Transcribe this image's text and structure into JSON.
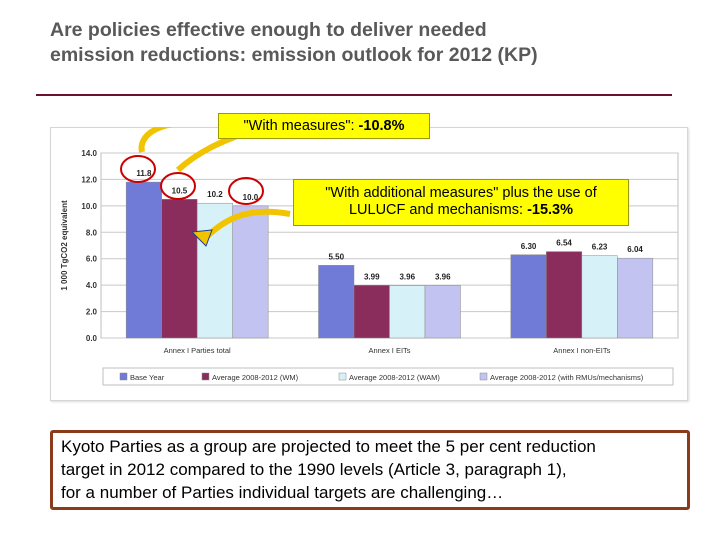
{
  "title": {
    "line1": "Are policies effective enough to deliver needed",
    "line2": "emission reductions: emission outlook for 2012 (KP)"
  },
  "callouts": {
    "wm_prefix": "\"With measures\": ",
    "wm_value": "-10.8%",
    "wam_line1": "\"With additional measures\" plus the use of",
    "wam_line2_prefix": "LULUCF and mechanisms: ",
    "wam_value": "-15.3%"
  },
  "summary": {
    "line1": "Kyoto Parties as a group are projected to meet the 5 per cent reduction",
    "line2": "target in 2012 compared to the 1990 levels (Article 3, paragraph 1),",
    "line3": "for a number of Parties individual targets are challenging…"
  },
  "colors": {
    "title": "#595959",
    "rule": "#6b1030",
    "callout_fill": "#ffff00",
    "circle_stroke": "#cc0000",
    "arrow_fill": "#f2c400",
    "arrow_stroke": "#1f3f8f",
    "summary_border": "#8b3a1a"
  },
  "chart_data": {
    "type": "bar",
    "ylabel": "1 000 TgCO2 equivalent",
    "ylim": [
      0,
      14
    ],
    "yticks": [
      "0.0",
      "2.0",
      "4.0",
      "6.0",
      "8.0",
      "10.0",
      "12.0",
      "14.0"
    ],
    "grid": true,
    "legend_position": "bottom",
    "categories": [
      "Annex I Parties total",
      "Annex I EITs",
      "Annex I non-EITs"
    ],
    "series": [
      {
        "name": "Base Year",
        "color": "#6f7bd6",
        "values": [
          11.8,
          5.5,
          6.3
        ],
        "labels": [
          "11.8",
          "5.50",
          "6.30"
        ]
      },
      {
        "name": "Average 2008-2012 (WM)",
        "color": "#8b2d5c",
        "values": [
          10.5,
          3.99,
          6.54
        ],
        "labels": [
          "10.5",
          "3.99",
          "6.54"
        ]
      },
      {
        "name": "Average 2008-2012 (WAM)",
        "color": "#d6f2f8",
        "values": [
          10.2,
          3.96,
          6.23
        ],
        "labels": [
          "10.2",
          "3.96",
          "6.23"
        ]
      },
      {
        "name": "Average 2008-2012 (with RMUs/mechanisms)",
        "color": "#c3c3f2",
        "values": [
          10.0,
          3.96,
          6.04
        ],
        "labels": [
          "10.0",
          "3.96",
          "6.04"
        ]
      }
    ]
  }
}
